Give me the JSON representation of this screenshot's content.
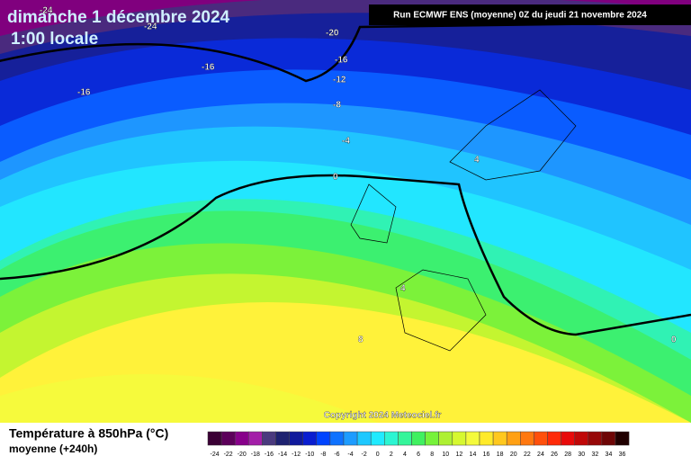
{
  "header": {
    "date": "dimanche 1 décembre 2024",
    "time": "1:00 locale",
    "run": "Run ECMWF ENS (moyenne) 0Z du jeudi 21 novembre 2024"
  },
  "map": {
    "contour_labels": [
      -24,
      -24,
      -20,
      -16,
      -16,
      -16,
      -12,
      -8,
      -4,
      0,
      4,
      4,
      8,
      0
    ],
    "copyright": "Copyright 2024 Meteociel.fr"
  },
  "legend": {
    "title": "Température à 850hPa (°C)",
    "subtitle": "moyenne   (+240h)",
    "values": [
      -24,
      -22,
      -20,
      -18,
      -16,
      -14,
      -12,
      -10,
      -8,
      -6,
      -4,
      -2,
      0,
      2,
      4,
      6,
      8,
      10,
      12,
      14,
      16,
      18,
      20,
      22,
      24,
      26,
      28,
      30,
      32,
      34,
      36
    ],
    "colors": [
      "#3a0035",
      "#5c005a",
      "#87008a",
      "#a31fa8",
      "#4a3a7e",
      "#1e2270",
      "#101a9c",
      "#0a1ed0",
      "#0044ff",
      "#0f72ff",
      "#1e9cff",
      "#1ec8ff",
      "#20eaff",
      "#2cf5d2",
      "#35f59a",
      "#40f060",
      "#76f23a",
      "#aef032",
      "#d6f830",
      "#f4fa3c",
      "#ffea2a",
      "#ffc81e",
      "#ffa014",
      "#ff7810",
      "#ff500c",
      "#ff2a08",
      "#e80a0a",
      "#c00808",
      "#960808",
      "#6e0606",
      "#200000"
    ]
  }
}
